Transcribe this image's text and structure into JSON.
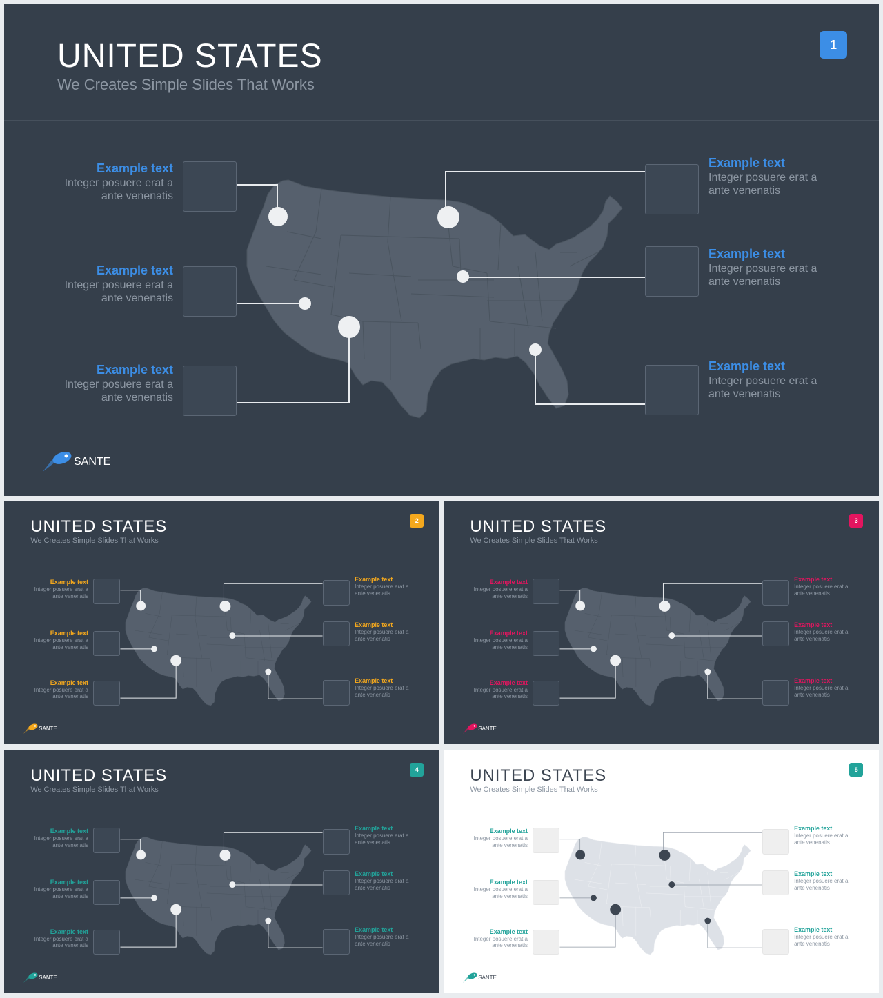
{
  "slides": [
    {
      "title": "UNITED STATES",
      "subtitle": "We Creates Simple Slides That Works",
      "badge": "1",
      "accent": "#3c8ee6",
      "theme": "dark",
      "logo": "SANTE",
      "callouts": [
        {
          "label": "Example text",
          "desc_line1": "Integer posuere erat a",
          "desc_line2": "ante venenatis"
        },
        {
          "label": "Example text",
          "desc_line1": "Integer posuere erat a",
          "desc_line2": "ante venenatis"
        },
        {
          "label": "Example text",
          "desc_line1": "Integer posuere erat a",
          "desc_line2": "ante venenatis"
        },
        {
          "label": "Example text",
          "desc_line1": "Integer posuere erat a",
          "desc_line2": "ante venenatis"
        },
        {
          "label": "Example text",
          "desc_line1": "Integer posuere erat a",
          "desc_line2": "ante venenatis"
        },
        {
          "label": "Example text",
          "desc_line1": "Integer posuere erat a",
          "desc_line2": "ante venenatis"
        }
      ]
    },
    {
      "title": "UNITED STATES",
      "subtitle": "We Creates Simple Slides That Works",
      "badge": "2",
      "accent": "#f4a81d",
      "theme": "dark",
      "logo": "SANTE",
      "callouts": [
        {
          "label": "Example text",
          "desc_line1": "Integer posuere erat a",
          "desc_line2": "ante venenatis"
        },
        {
          "label": "Example text",
          "desc_line1": "Integer posuere erat a",
          "desc_line2": "ante venenatis"
        },
        {
          "label": "Example text",
          "desc_line1": "Integer posuere erat a",
          "desc_line2": "ante venenatis"
        },
        {
          "label": "Example text",
          "desc_line1": "Integer posuere erat a",
          "desc_line2": "ante venenatis"
        },
        {
          "label": "Example text",
          "desc_line1": "Integer posuere erat a",
          "desc_line2": "ante venenatis"
        },
        {
          "label": "Example text",
          "desc_line1": "Integer posuere erat a",
          "desc_line2": "ante venenatis"
        }
      ]
    },
    {
      "title": "UNITED STATES",
      "subtitle": "We Creates Simple Slides That Works",
      "badge": "3",
      "accent": "#e3155f",
      "theme": "dark",
      "logo": "SANTE",
      "callouts": [
        {
          "label": "Example text",
          "desc_line1": "Integer posuere erat a",
          "desc_line2": "ante venenatis"
        },
        {
          "label": "Example text",
          "desc_line1": "Integer posuere erat a",
          "desc_line2": "ante venenatis"
        },
        {
          "label": "Example text",
          "desc_line1": "Integer posuere erat a",
          "desc_line2": "ante venenatis"
        },
        {
          "label": "Example text",
          "desc_line1": "Integer posuere erat a",
          "desc_line2": "ante venenatis"
        },
        {
          "label": "Example text",
          "desc_line1": "Integer posuere erat a",
          "desc_line2": "ante venenatis"
        },
        {
          "label": "Example text",
          "desc_line1": "Integer posuere erat a",
          "desc_line2": "ante venenatis"
        }
      ]
    },
    {
      "title": "UNITED STATES",
      "subtitle": "We Creates Simple Slides That Works",
      "badge": "4",
      "accent": "#22a39a",
      "theme": "dark",
      "logo": "SANTE",
      "callouts": [
        {
          "label": "Example text",
          "desc_line1": "Integer posuere erat a",
          "desc_line2": "ante venenatis"
        },
        {
          "label": "Example text",
          "desc_line1": "Integer posuere erat a",
          "desc_line2": "ante venenatis"
        },
        {
          "label": "Example text",
          "desc_line1": "Integer posuere erat a",
          "desc_line2": "ante venenatis"
        },
        {
          "label": "Example text",
          "desc_line1": "Integer posuere erat a",
          "desc_line2": "ante venenatis"
        },
        {
          "label": "Example text",
          "desc_line1": "Integer posuere erat a",
          "desc_line2": "ante venenatis"
        },
        {
          "label": "Example text",
          "desc_line1": "Integer posuere erat a",
          "desc_line2": "ante venenatis"
        }
      ]
    },
    {
      "title": "UNITED STATES",
      "subtitle": "We Creates Simple Slides That Works",
      "badge": "5",
      "accent": "#22a39a",
      "theme": "light",
      "logo": "SANTE",
      "callouts": [
        {
          "label": "Example text",
          "desc_line1": "Integer posuere erat a",
          "desc_line2": "ante venenatis"
        },
        {
          "label": "Example text",
          "desc_line1": "Integer posuere erat a",
          "desc_line2": "ante venenatis"
        },
        {
          "label": "Example text",
          "desc_line1": "Integer posuere erat a",
          "desc_line2": "ante venenatis"
        },
        {
          "label": "Example text",
          "desc_line1": "Integer posuere erat a",
          "desc_line2": "ante venenatis"
        },
        {
          "label": "Example text",
          "desc_line1": "Integer posuere erat a",
          "desc_line2": "ante venenatis"
        },
        {
          "label": "Example text",
          "desc_line1": "Integer posuere erat a",
          "desc_line2": "ante venenatis"
        }
      ]
    }
  ],
  "map_icon": "usa-map",
  "logo_icon": "rocket-icon"
}
